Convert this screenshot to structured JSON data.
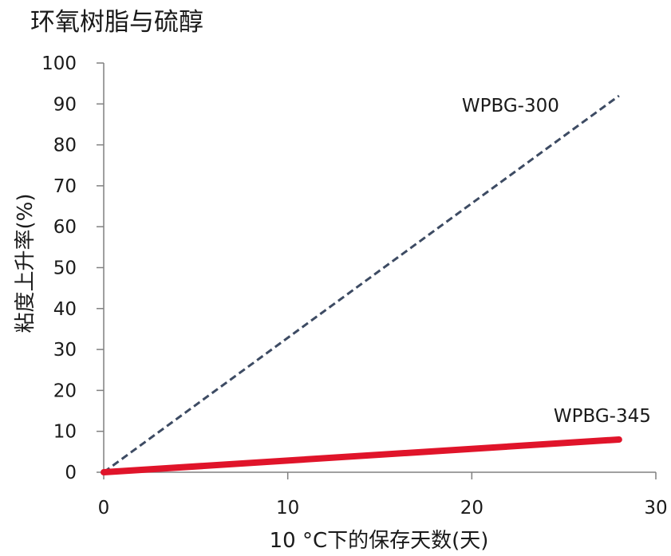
{
  "chart_data": {
    "type": "line",
    "title": "环氧树脂与硫醇",
    "xlabel": "10 °C下的保存天数(天)",
    "ylabel": "粘度上升率(%)",
    "xlim": [
      0,
      30
    ],
    "ylim": [
      0,
      100
    ],
    "xticks": [
      0,
      10,
      20,
      30
    ],
    "yticks": [
      0,
      10,
      20,
      30,
      40,
      50,
      60,
      70,
      80,
      90,
      100
    ],
    "grid": false,
    "legend": "none",
    "series": [
      {
        "name": "WPBG-300",
        "x": [
          0,
          28
        ],
        "y": [
          0,
          92
        ],
        "color": "#3d4b63",
        "style": "dashed"
      },
      {
        "name": "WPBG-345",
        "x": [
          0,
          28
        ],
        "y": [
          0,
          8
        ],
        "color": "#e0142a",
        "style": "solid"
      }
    ]
  }
}
